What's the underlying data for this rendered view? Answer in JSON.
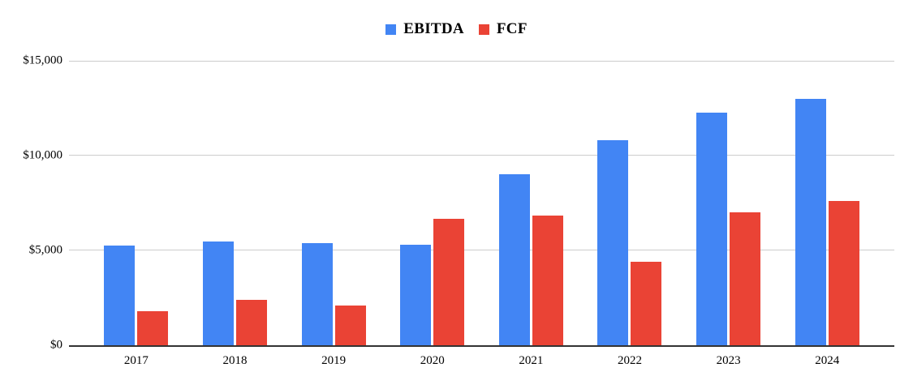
{
  "colors": {
    "background": "#ffffff",
    "ebitda": "#4285F4",
    "fcf": "#EA4335",
    "gridline": "#cccccc",
    "axis_line": "#333333",
    "text": "#000000"
  },
  "chart_data": {
    "type": "bar",
    "title": "",
    "xlabel": "",
    "ylabel": "",
    "legend_position": "top",
    "grid": true,
    "ylim": [
      0,
      15000
    ],
    "categories": [
      "2017",
      "2018",
      "2019",
      "2020",
      "2021",
      "2022",
      "2023",
      "2024"
    ],
    "series": [
      {
        "name": "EBITDA",
        "color": "#4285F4",
        "values": [
          5250,
          5450,
          5400,
          5300,
          9000,
          10800,
          12250,
          13000
        ]
      },
      {
        "name": "FCF",
        "color": "#EA4335",
        "values": [
          1800,
          2400,
          2100,
          6650,
          6850,
          4400,
          7000,
          7600
        ]
      }
    ],
    "yticks": [
      {
        "value": 15000,
        "label": "$15,000"
      },
      {
        "value": 10000,
        "label": "$10,000"
      },
      {
        "value": 5000,
        "label": "$5,000"
      },
      {
        "value": 0,
        "label": "$0"
      }
    ]
  }
}
